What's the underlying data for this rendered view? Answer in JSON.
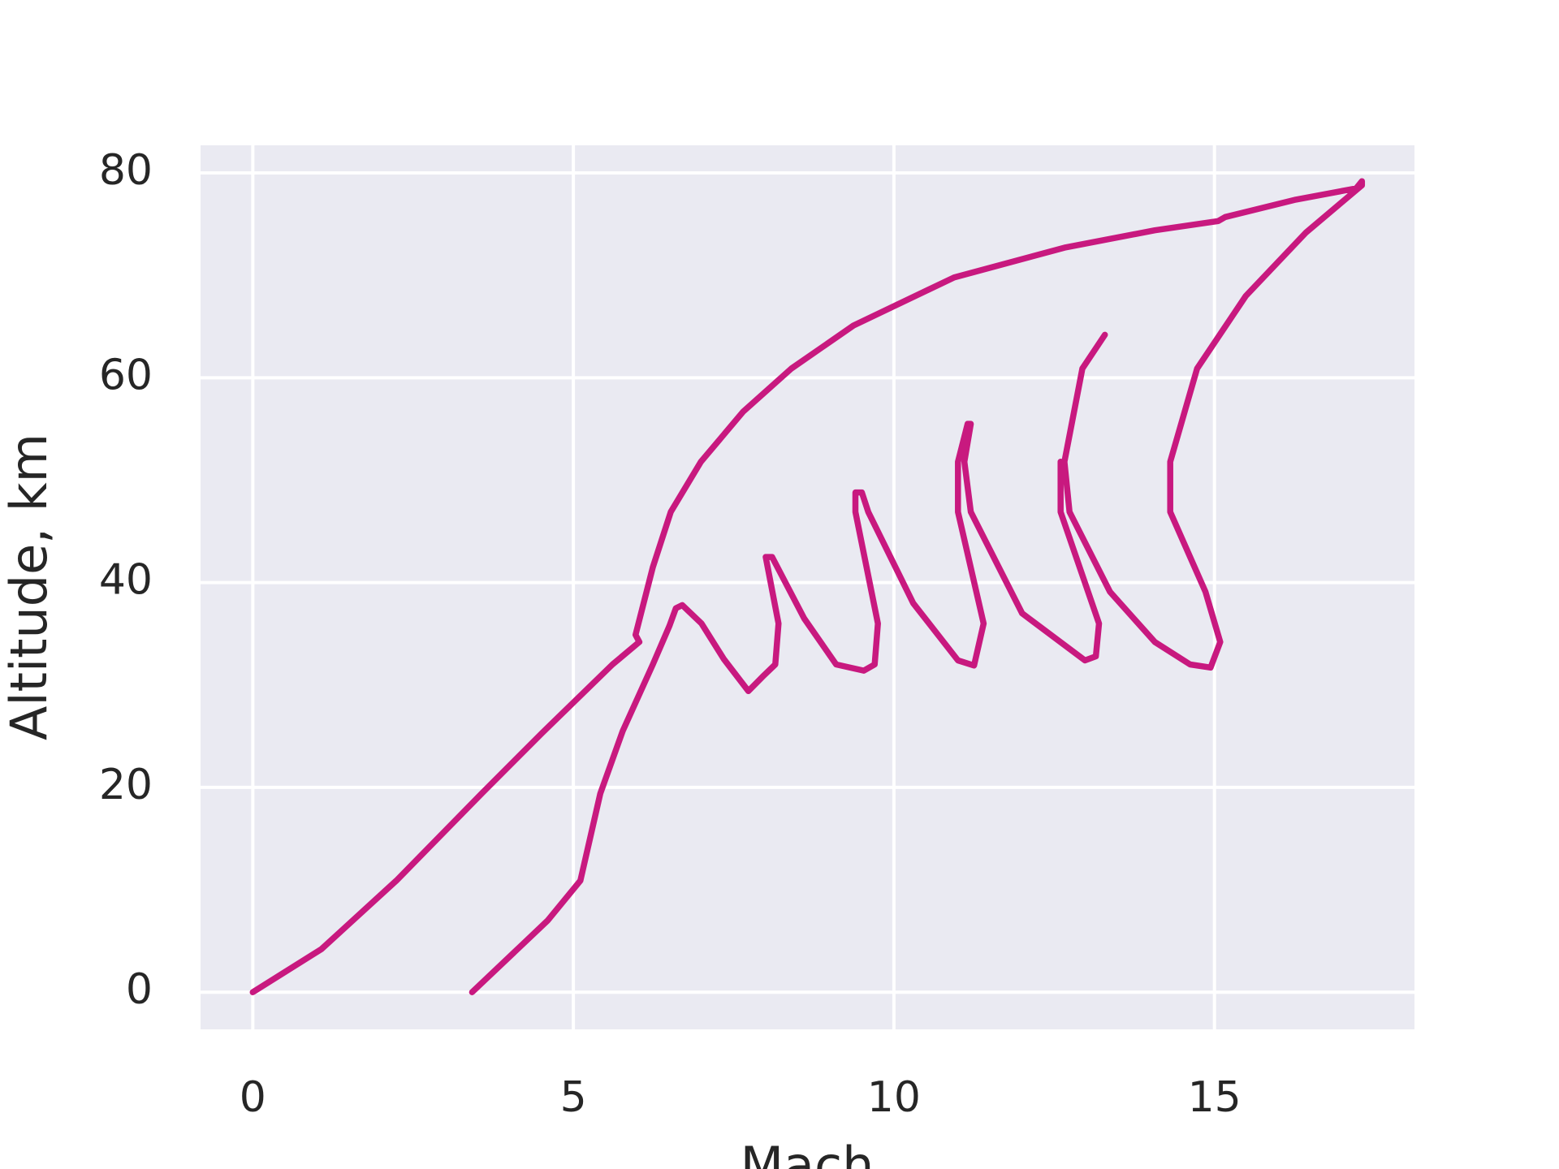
{
  "chart_data": {
    "type": "line",
    "xlabel": "Mach",
    "ylabel": "Altitude, km",
    "x": [
      0,
      1.07,
      2.24,
      3.57,
      4.51,
      5.61,
      6.03,
      5.97,
      6.24,
      6.52,
      6.99,
      7.65,
      8.4,
      9.37,
      10.94,
      12.66,
      14.07,
      15.06,
      15.17,
      16.27,
      17.21,
      17.3,
      17.3,
      16.43,
      15.49,
      14.73,
      14.31,
      14.31,
      14.86,
      15.09,
      14.94,
      14.62,
      14.07,
      13.37,
      12.74,
      12.66,
      12.94,
      13.29,
      null,
      3.42,
      4.6,
      5.11,
      5.42,
      5.77,
      6.24,
      6.5,
      6.6,
      6.7,
      7.0,
      7.35,
      7.73,
      7.95,
      8.15,
      8.2,
      8.0,
      8.1,
      8.6,
      9.1,
      9.53,
      9.7,
      9.75,
      9.4,
      9.4,
      9.5,
      9.6,
      10.3,
      11.0,
      11.25,
      11.4,
      11.0,
      11.0,
      11.15,
      11.2,
      11.1,
      11.2,
      12.0,
      12.98,
      13.15,
      13.2,
      12.6,
      12.6
    ],
    "values": [
      0,
      4.2,
      10.9,
      19.4,
      25.3,
      32.0,
      34.2,
      34.9,
      41.5,
      46.9,
      51.8,
      56.7,
      60.9,
      65.1,
      69.8,
      72.7,
      74.4,
      75.3,
      75.7,
      77.4,
      78.5,
      79.2,
      78.8,
      74.2,
      68.0,
      60.9,
      51.8,
      46.9,
      39.1,
      34.2,
      31.7,
      32.0,
      34.2,
      39.1,
      46.9,
      51.8,
      60.9,
      64.2,
      null,
      0,
      7,
      10.9,
      19.4,
      25.5,
      32.0,
      35.8,
      37.5,
      37.8,
      36,
      32.5,
      29.4,
      30.8,
      32,
      36,
      42.5,
      42.5,
      36.5,
      32,
      31.4,
      32,
      36,
      46.9,
      48.8,
      48.8,
      46.9,
      38,
      32.4,
      31.9,
      36,
      46.9,
      51.8,
      55.5,
      55.5,
      51.8,
      46.9,
      37,
      32.4,
      32.8,
      36,
      46.9,
      51.8
    ],
    "color": "#c8197f",
    "xlim": [
      -0.815,
      18.12
    ],
    "ylim": [
      -3.63,
      82.7
    ],
    "xticks": [
      0,
      5,
      10,
      15
    ],
    "yticks": [
      0,
      20,
      40,
      60,
      80
    ],
    "grid": true,
    "background": "#eaeaf2"
  }
}
